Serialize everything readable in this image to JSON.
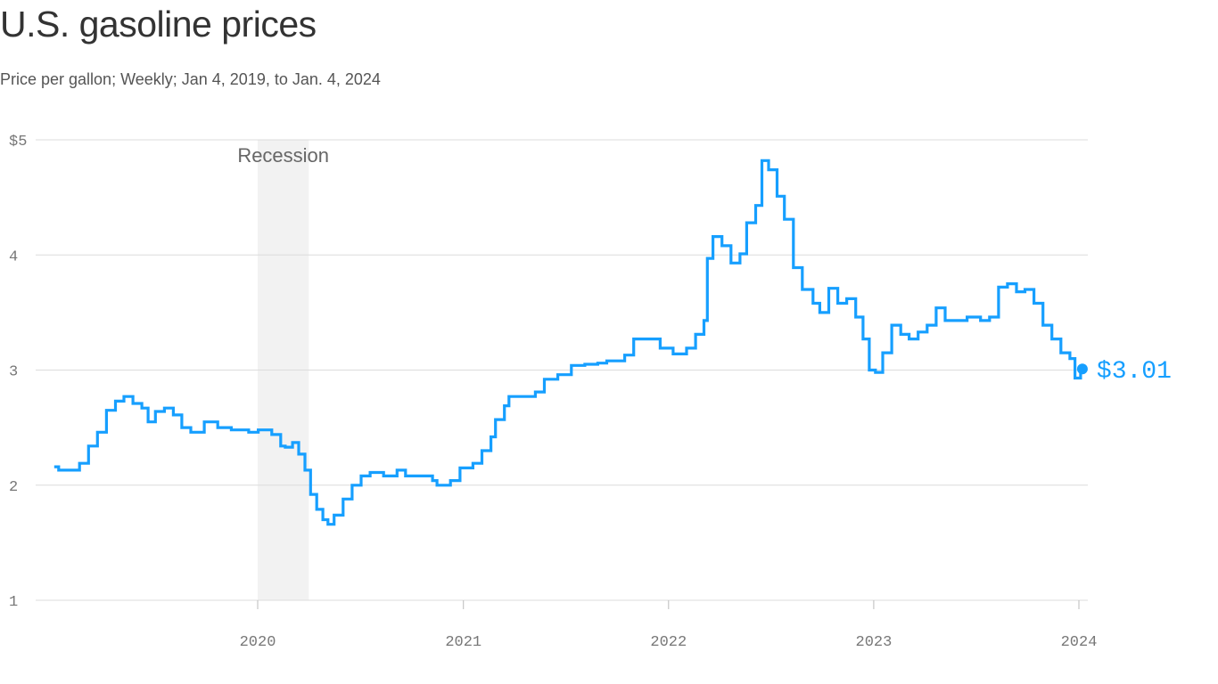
{
  "chart_data": {
    "type": "line",
    "title": "U.S. gasoline prices",
    "subtitle": "Price per gallon; Weekly; Jan 4, 2019, to Jan. 4, 2024",
    "xlabel": "",
    "ylabel": "",
    "xlim": [
      "2019-01-01",
      "2024-01-04"
    ],
    "ylim": [
      1,
      5
    ],
    "grid": true,
    "line_color": "#169fff",
    "y_ticks": [
      {
        "value": 5,
        "label": "$5"
      },
      {
        "value": 4,
        "label": "4"
      },
      {
        "value": 3,
        "label": "3"
      },
      {
        "value": 2,
        "label": "2"
      },
      {
        "value": 1,
        "label": "1"
      }
    ],
    "x_ticks": [
      {
        "value": "2020-01-01",
        "label": "2020"
      },
      {
        "value": "2021-01-01",
        "label": "2021"
      },
      {
        "value": "2022-01-01",
        "label": "2022"
      },
      {
        "value": "2023-01-01",
        "label": "2023"
      },
      {
        "value": "2024-01-01",
        "label": "2024"
      }
    ],
    "shaded_region": {
      "label": "Recession",
      "start": "2020-01-01",
      "end": "2020-04-01",
      "color": "#f2f2f2"
    },
    "end_label": {
      "date": "2024-01-04",
      "value": 3.01,
      "label": "$3.01"
    },
    "series": [
      {
        "points": [
          [
            "2019-01-04",
            2.16
          ],
          [
            "2019-01-12",
            2.13
          ],
          [
            "2019-02-18",
            2.19
          ],
          [
            "2019-03-06",
            2.34
          ],
          [
            "2019-03-22",
            2.46
          ],
          [
            "2019-04-07",
            2.65
          ],
          [
            "2019-04-23",
            2.73
          ],
          [
            "2019-05-08",
            2.77
          ],
          [
            "2019-05-24",
            2.71
          ],
          [
            "2019-06-09",
            2.67
          ],
          [
            "2019-06-20",
            2.55
          ],
          [
            "2019-07-03",
            2.64
          ],
          [
            "2019-07-19",
            2.67
          ],
          [
            "2019-08-04",
            2.61
          ],
          [
            "2019-08-19",
            2.5
          ],
          [
            "2019-09-04",
            2.46
          ],
          [
            "2019-09-25",
            2.46
          ],
          [
            "2019-09-28",
            2.55
          ],
          [
            "2019-10-22",
            2.5
          ],
          [
            "2019-11-15",
            2.48
          ],
          [
            "2019-12-16",
            2.46
          ],
          [
            "2020-01-02",
            2.48
          ],
          [
            "2020-01-26",
            2.44
          ],
          [
            "2020-02-11",
            2.34
          ],
          [
            "2020-02-19",
            2.33
          ],
          [
            "2020-03-03",
            2.37
          ],
          [
            "2020-03-14",
            2.27
          ],
          [
            "2020-03-25",
            2.13
          ],
          [
            "2020-04-04",
            1.92
          ],
          [
            "2020-04-15",
            1.79
          ],
          [
            "2020-04-26",
            1.7
          ],
          [
            "2020-05-05",
            1.66
          ],
          [
            "2020-05-16",
            1.74
          ],
          [
            "2020-06-01",
            1.88
          ],
          [
            "2020-06-17",
            2.0
          ],
          [
            "2020-07-03",
            2.08
          ],
          [
            "2020-07-19",
            2.11
          ],
          [
            "2020-08-12",
            2.08
          ],
          [
            "2020-09-05",
            2.13
          ],
          [
            "2020-09-20",
            2.08
          ],
          [
            "2020-10-14",
            2.08
          ],
          [
            "2020-11-07",
            2.04
          ],
          [
            "2020-11-15",
            2.0
          ],
          [
            "2020-12-09",
            2.04
          ],
          [
            "2020-12-26",
            2.15
          ],
          [
            "2021-01-18",
            2.19
          ],
          [
            "2021-02-03",
            2.3
          ],
          [
            "2021-02-19",
            2.42
          ],
          [
            "2021-02-27",
            2.57
          ],
          [
            "2021-03-15",
            2.69
          ],
          [
            "2021-03-23",
            2.77
          ],
          [
            "2021-04-16",
            2.77
          ],
          [
            "2021-05-09",
            2.81
          ],
          [
            "2021-05-25",
            2.92
          ],
          [
            "2021-06-18",
            2.96
          ],
          [
            "2021-07-12",
            3.04
          ],
          [
            "2021-08-05",
            3.05
          ],
          [
            "2021-08-28",
            3.06
          ],
          [
            "2021-09-13",
            3.08
          ],
          [
            "2021-10-15",
            3.13
          ],
          [
            "2021-10-31",
            3.27
          ],
          [
            "2021-11-24",
            3.27
          ],
          [
            "2021-12-17",
            3.19
          ],
          [
            "2022-01-09",
            3.14
          ],
          [
            "2022-02-02",
            3.19
          ],
          [
            "2022-02-18",
            3.31
          ],
          [
            "2022-03-05",
            3.43
          ],
          [
            "2022-03-11",
            3.97
          ],
          [
            "2022-03-21",
            4.16
          ],
          [
            "2022-04-06",
            4.08
          ],
          [
            "2022-04-22",
            3.93
          ],
          [
            "2022-05-08",
            4.01
          ],
          [
            "2022-05-20",
            4.28
          ],
          [
            "2022-06-05",
            4.43
          ],
          [
            "2022-06-16",
            4.82
          ],
          [
            "2022-06-28",
            4.74
          ],
          [
            "2022-07-13",
            4.51
          ],
          [
            "2022-07-26",
            4.31
          ],
          [
            "2022-08-11",
            3.89
          ],
          [
            "2022-08-27",
            3.7
          ],
          [
            "2022-09-15",
            3.58
          ],
          [
            "2022-09-27",
            3.5
          ],
          [
            "2022-10-13",
            3.71
          ],
          [
            "2022-10-29",
            3.58
          ],
          [
            "2022-11-14",
            3.62
          ],
          [
            "2022-11-30",
            3.46
          ],
          [
            "2022-12-13",
            3.27
          ],
          [
            "2022-12-24",
            3.0
          ],
          [
            "2023-01-04",
            2.98
          ],
          [
            "2023-01-17",
            3.15
          ],
          [
            "2023-02-02",
            3.39
          ],
          [
            "2023-02-18",
            3.31
          ],
          [
            "2023-03-05",
            3.27
          ],
          [
            "2023-03-21",
            3.33
          ],
          [
            "2023-04-06",
            3.39
          ],
          [
            "2023-04-22",
            3.54
          ],
          [
            "2023-05-08",
            3.43
          ],
          [
            "2023-06-01",
            3.43
          ],
          [
            "2023-06-16",
            3.46
          ],
          [
            "2023-07-10",
            3.43
          ],
          [
            "2023-07-26",
            3.46
          ],
          [
            "2023-08-11",
            3.72
          ],
          [
            "2023-08-27",
            3.75
          ],
          [
            "2023-09-12",
            3.68
          ],
          [
            "2023-09-27",
            3.7
          ],
          [
            "2023-10-13",
            3.58
          ],
          [
            "2023-10-29",
            3.39
          ],
          [
            "2023-11-14",
            3.27
          ],
          [
            "2023-11-30",
            3.15
          ],
          [
            "2023-12-16",
            3.1
          ],
          [
            "2023-12-25",
            2.93
          ],
          [
            "2024-01-04",
            3.01
          ]
        ]
      }
    ]
  }
}
